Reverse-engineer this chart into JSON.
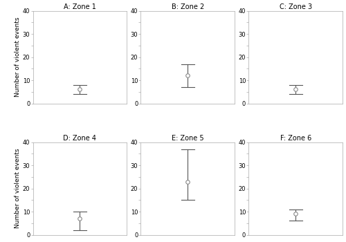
{
  "panels": [
    {
      "title": "A: Zone 1",
      "mean": 6,
      "ci_low": 4,
      "ci_high": 8,
      "ylim": [
        0,
        40
      ],
      "yticks": [
        0,
        5,
        10,
        15,
        20,
        25,
        30,
        35,
        40
      ]
    },
    {
      "title": "B: Zone 2",
      "mean": 12,
      "ci_low": 7,
      "ci_high": 17,
      "ylim": [
        0,
        40
      ],
      "yticks": [
        0,
        5,
        10,
        15,
        20,
        25,
        30,
        35,
        40
      ]
    },
    {
      "title": "C: Zone 3",
      "mean": 6,
      "ci_low": 4,
      "ci_high": 8,
      "ylim": [
        0,
        40
      ],
      "yticks": [
        0,
        5,
        10,
        15,
        20,
        25,
        30,
        35,
        40
      ]
    },
    {
      "title": "D: Zone 4",
      "mean": 7,
      "ci_low": 2,
      "ci_high": 10,
      "ylim": [
        0,
        40
      ],
      "yticks": [
        0,
        5,
        10,
        15,
        20,
        25,
        30,
        35,
        40
      ]
    },
    {
      "title": "E: Zone 5",
      "mean": 23,
      "ci_low": 15,
      "ci_high": 37,
      "ylim": [
        0,
        40
      ],
      "yticks": [
        0,
        5,
        10,
        15,
        20,
        25,
        30,
        35,
        40
      ]
    },
    {
      "title": "F: Zone 6",
      "mean": 9,
      "ci_low": 6,
      "ci_high": 11,
      "ylim": [
        0,
        40
      ],
      "yticks": [
        0,
        5,
        10,
        15,
        20,
        25,
        30,
        35,
        40
      ]
    }
  ],
  "ylabel": "Number of violent events",
  "marker_color": "white",
  "marker_edge_color": "#888888",
  "line_color": "#555555",
  "spine_color": "#aaaaaa",
  "background_color": "white",
  "title_fontsize": 7,
  "tick_fontsize": 6,
  "ylabel_fontsize": 6.5,
  "tick_label_every": [
    0,
    10,
    20,
    30,
    40
  ]
}
